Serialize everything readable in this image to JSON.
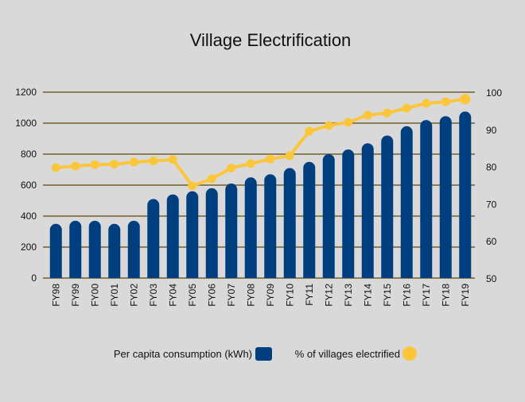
{
  "chart_data": {
    "type": "bar+line",
    "title": "Village Electrification",
    "categories": [
      "FY98",
      "FY99",
      "FY00",
      "FY01",
      "FY02",
      "FY03",
      "FY04",
      "FY05",
      "FY06",
      "FY07",
      "FY08",
      "FY09",
      "FY10",
      "FY11",
      "FY12",
      "FY13",
      "FY14",
      "FY15",
      "FY16",
      "FY17",
      "FY18",
      "FY19"
    ],
    "series": [
      {
        "name": "Per capita consumption (kWh)",
        "type": "bar",
        "axis": "left",
        "color": "#003f7f",
        "values": [
          350,
          370,
          370,
          350,
          370,
          510,
          540,
          560,
          580,
          610,
          650,
          670,
          710,
          750,
          800,
          830,
          870,
          920,
          980,
          1020,
          1045,
          1075
        ]
      },
      {
        "name": "% of villages electrified",
        "type": "line",
        "axis": "right",
        "color": "#fcc63b",
        "values": [
          79.7,
          80.1,
          80.5,
          80.6,
          81.2,
          81.5,
          81.9,
          74.8,
          76.7,
          79.6,
          80.8,
          82.0,
          82.9,
          89.5,
          91.0,
          91.9,
          93.8,
          94.4,
          95.7,
          97.0,
          97.4,
          98.1
        ]
      }
    ],
    "left_axis": {
      "ylim": [
        0,
        1200
      ],
      "ticks": [
        "0",
        "200",
        "400",
        "600",
        "800",
        "1000",
        "1200"
      ]
    },
    "right_axis": {
      "ylim": [
        50,
        100
      ],
      "ticks": [
        "50",
        "60",
        "70",
        "80",
        "90",
        "100"
      ]
    },
    "grid": true,
    "gridline_color": "#8c7d5a",
    "legend_placement": "bottom"
  }
}
